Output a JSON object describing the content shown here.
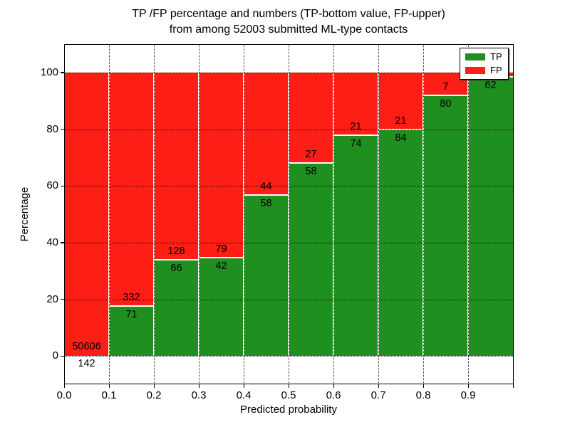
{
  "figure": {
    "title_line1": "TP /FP percentage and numbers (TP-bottom value, FP-upper)",
    "title_line2": "from among 52003 submitted ML-type contacts",
    "xlabel": "Predicted probability",
    "ylabel": "Percentage",
    "colors": {
      "tp": "#1f8f1f",
      "fp": "#fd1e16",
      "grid": "#000000",
      "background": "#ffffff"
    },
    "legend": [
      {
        "label": "TP",
        "color_key": "tp"
      },
      {
        "label": "FP",
        "color_key": "fp"
      }
    ]
  },
  "chart_data": {
    "type": "bar",
    "stacked": true,
    "normalized_to_100_percent": true,
    "title": "TP /FP percentage and numbers (TP-bottom value, FP-upper) from among 52003 submitted ML-type contacts",
    "xlabel": "Predicted probability",
    "ylabel": "Percentage",
    "total_contacts_in_title": 52003,
    "xlim": [
      0.0,
      1.0
    ],
    "ylim": [
      -10,
      110
    ],
    "x_tick_labels": [
      "0.0",
      "0.1",
      "0.2",
      "0.3",
      "0.4",
      "0.5",
      "0.6",
      "0.7",
      "0.8",
      "0.9"
    ],
    "y_tick_labels": [
      "0",
      "20",
      "40",
      "60",
      "80",
      "100"
    ],
    "y_ticks": [
      0,
      20,
      40,
      60,
      80,
      100
    ],
    "grid": true,
    "legend_position": "upper right",
    "series": [
      {
        "name": "TP",
        "counts": [
          142,
          71,
          66,
          42,
          58,
          58,
          74,
          84,
          80,
          62
        ],
        "pct": [
          0.28,
          17.6,
          34.0,
          34.7,
          56.9,
          68.2,
          77.9,
          80.0,
          92.0,
          98.4
        ]
      },
      {
        "name": "FP",
        "counts": [
          50606,
          332,
          128,
          79,
          44,
          27,
          21,
          21,
          7,
          null
        ],
        "pct": [
          99.72,
          82.4,
          66.0,
          65.3,
          43.1,
          31.8,
          22.1,
          20.0,
          8.0,
          1.6
        ]
      }
    ],
    "bars": [
      {
        "bin_start": 0.0,
        "bin_end": 0.1,
        "tp_pct": 0.28,
        "tp_label": "142",
        "fp_label": "50606"
      },
      {
        "bin_start": 0.1,
        "bin_end": 0.2,
        "tp_pct": 17.6,
        "tp_label": "71",
        "fp_label": "332"
      },
      {
        "bin_start": 0.2,
        "bin_end": 0.3,
        "tp_pct": 34.0,
        "tp_label": "66",
        "fp_label": "128"
      },
      {
        "bin_start": 0.3,
        "bin_end": 0.4,
        "tp_pct": 34.7,
        "tp_label": "42",
        "fp_label": "79"
      },
      {
        "bin_start": 0.4,
        "bin_end": 0.5,
        "tp_pct": 56.9,
        "tp_label": "58",
        "fp_label": "44"
      },
      {
        "bin_start": 0.5,
        "bin_end": 0.6,
        "tp_pct": 68.2,
        "tp_label": "58",
        "fp_label": "27"
      },
      {
        "bin_start": 0.6,
        "bin_end": 0.7,
        "tp_pct": 77.9,
        "tp_label": "74",
        "fp_label": "21"
      },
      {
        "bin_start": 0.7,
        "bin_end": 0.8,
        "tp_pct": 80.0,
        "tp_label": "84",
        "fp_label": "21"
      },
      {
        "bin_start": 0.8,
        "bin_end": 0.9,
        "tp_pct": 92.0,
        "tp_label": "80",
        "fp_label": "7"
      },
      {
        "bin_start": 0.9,
        "bin_end": 1.0,
        "tp_pct": 98.4,
        "tp_label": "62",
        "fp_label": ""
      }
    ]
  }
}
